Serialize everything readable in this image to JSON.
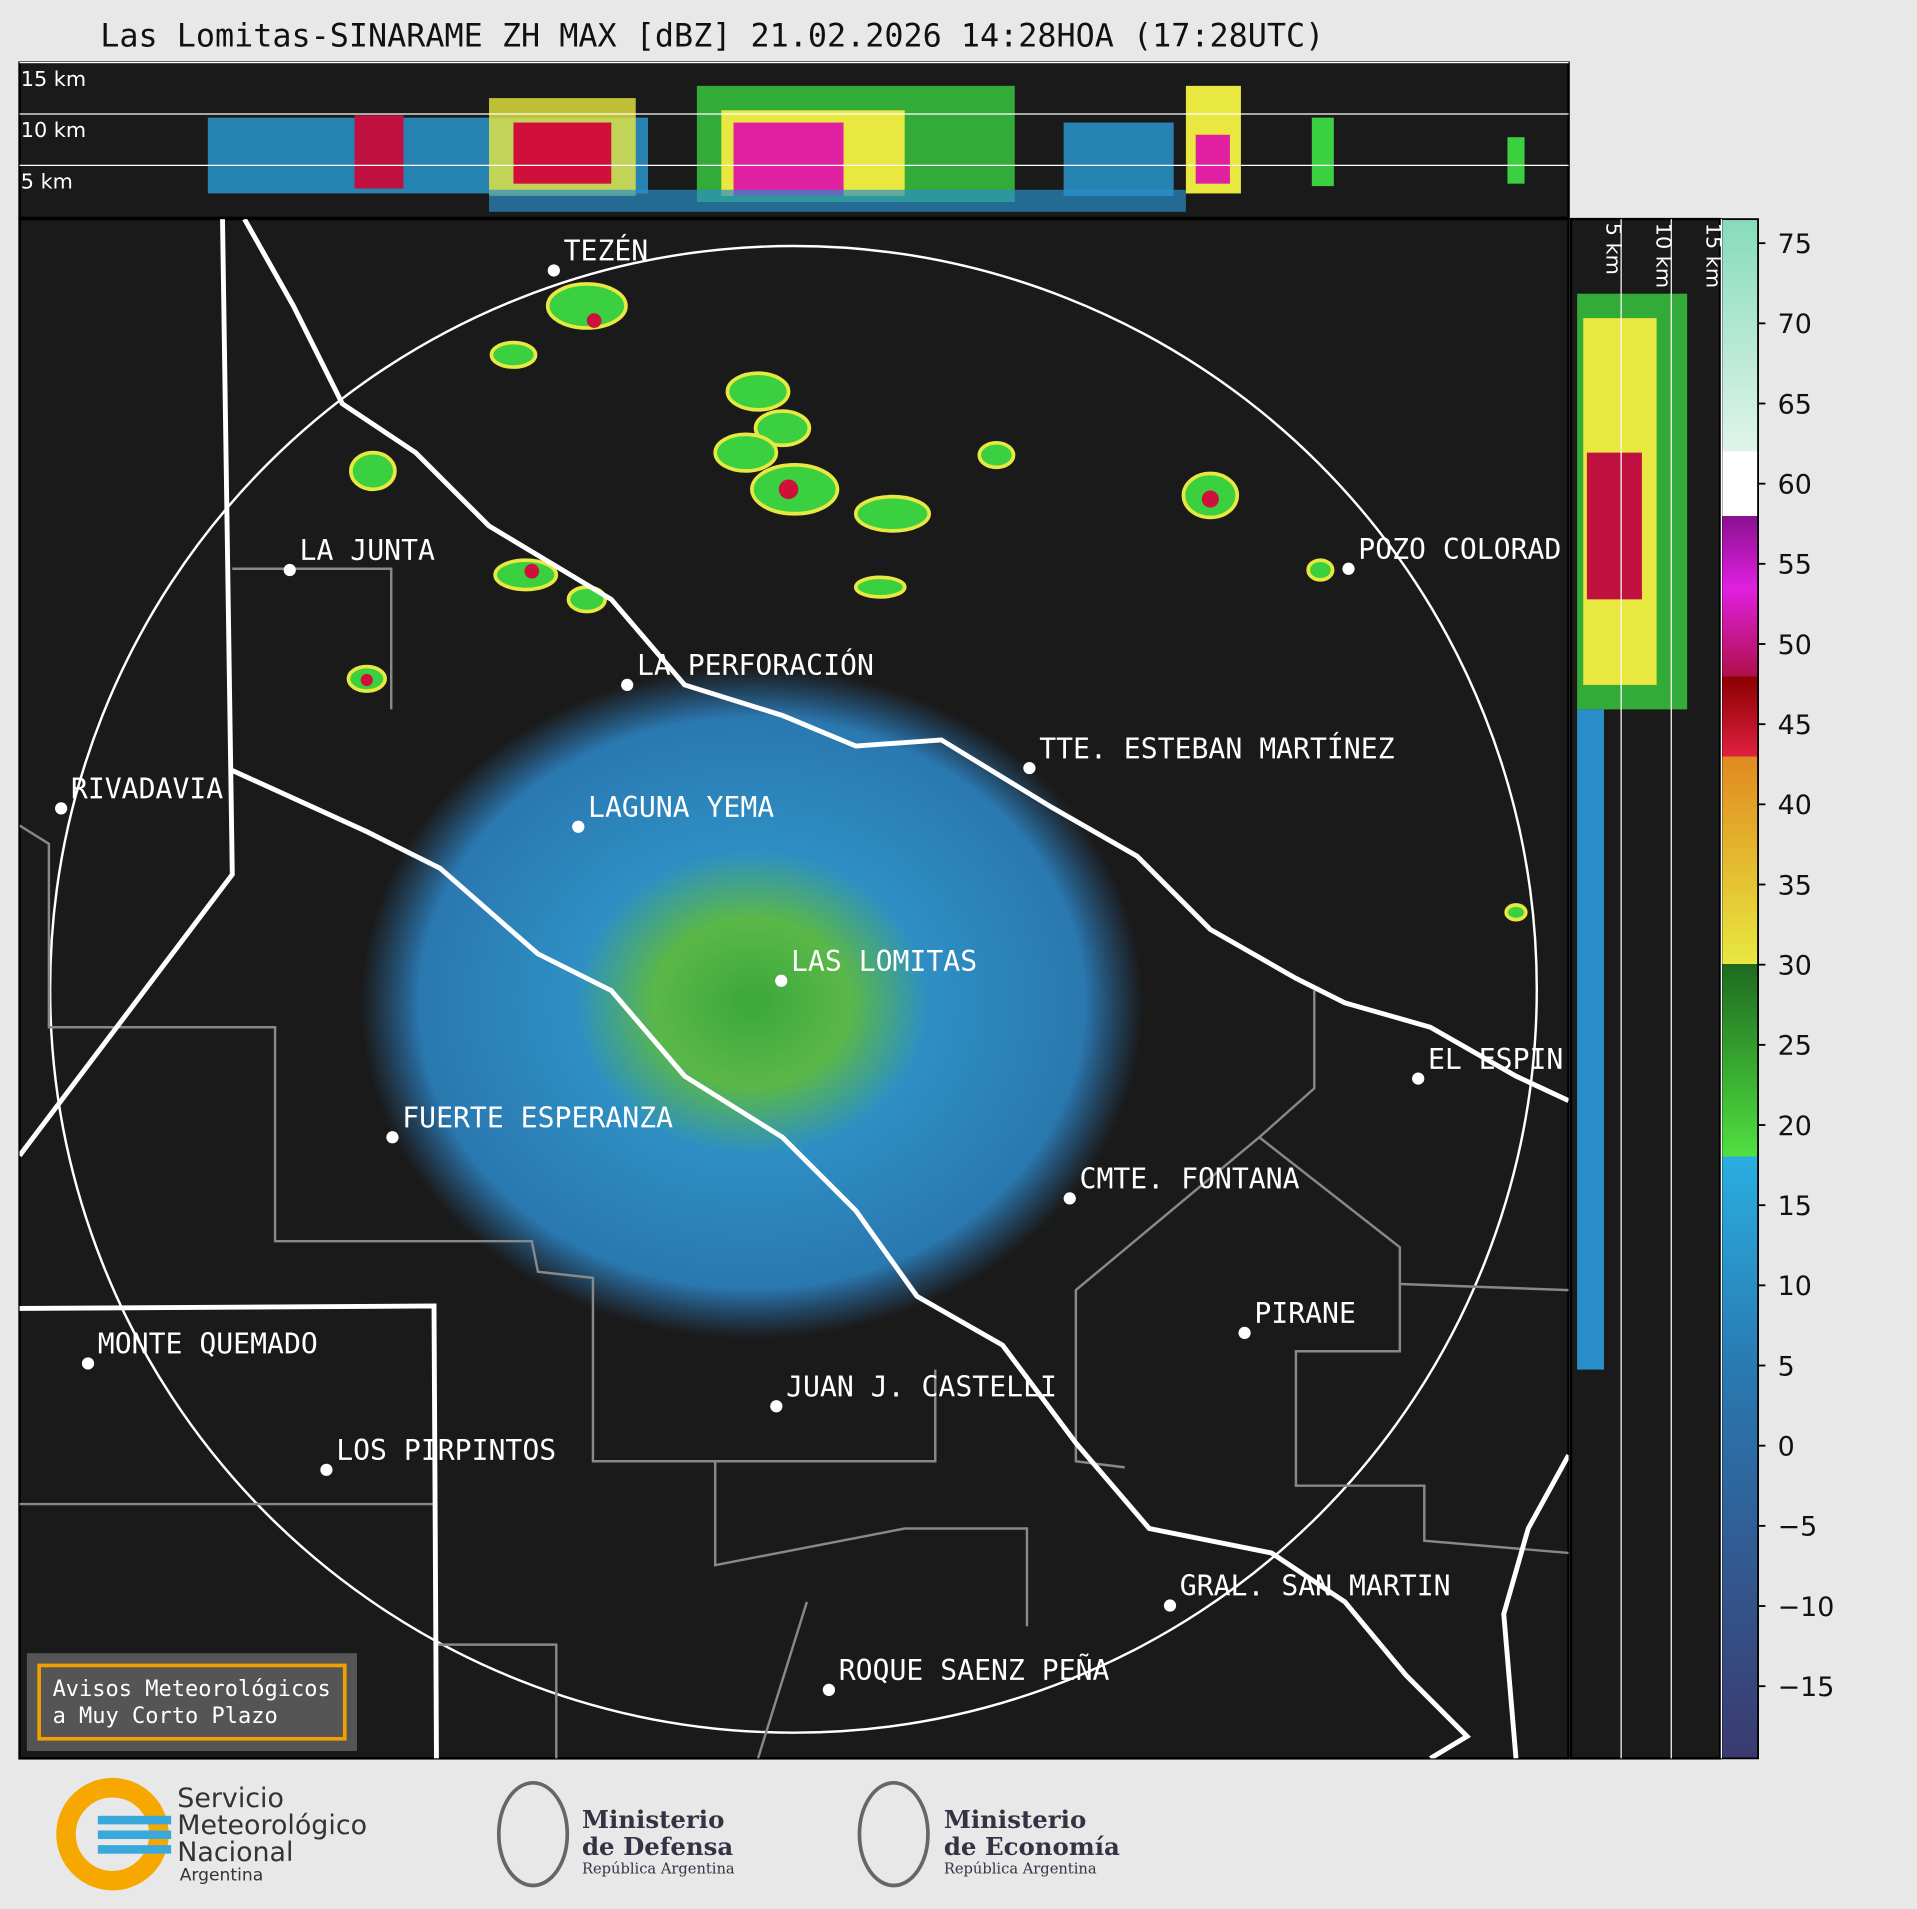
{
  "title": "Las Lomitas-SINARAME ZH MAX [dBZ] 21.02.2026 14:28HOA (17:28UTC)",
  "height_ticks": [
    {
      "value": 15,
      "label": "15 km"
    },
    {
      "value": 10,
      "label": "10 km"
    },
    {
      "value": 5,
      "label": "5 km"
    }
  ],
  "places": [
    "TEZÉN",
    "LA JUNTA",
    "POZO COLORAD",
    "LA PERFORACIÓN",
    "TTE. ESTEBAN MARTÍNEZ",
    "RIVADAVIA",
    "LAGUNA YEMA",
    "LAS LOMITAS",
    "EL ESPIN",
    "FUERTE ESPERANZA",
    "CMTE. FONTANA",
    "PIRANE",
    "MONTE QUEMADO",
    "JUAN J. CASTELLI",
    "LOS PIRPINTOS",
    "GRAL. SAN MARTIN",
    "ROQUE SAENZ PEÑA"
  ],
  "colorbar": {
    "lim": [
      -19.5,
      76.5
    ],
    "ticks": [
      75,
      70,
      65,
      60,
      55,
      50,
      45,
      40,
      35,
      30,
      25,
      20,
      15,
      10,
      5,
      0,
      {
        "value": -5,
        "label": "−5"
      },
      {
        "value": -10,
        "label": "−10"
      },
      {
        "value": -15,
        "label": "−15"
      }
    ]
  },
  "notice": [
    "Avisos Meteorológicos",
    "a Muy Corto Plazo"
  ],
  "logos": {
    "smn": [
      "Servicio",
      "Meteorológico",
      "Nacional",
      "Argentina"
    ],
    "defensa": [
      "Ministerio",
      "de Defensa",
      "República Argentina"
    ],
    "economia": [
      "Ministerio",
      "de Economía",
      "República Argentina"
    ]
  }
}
